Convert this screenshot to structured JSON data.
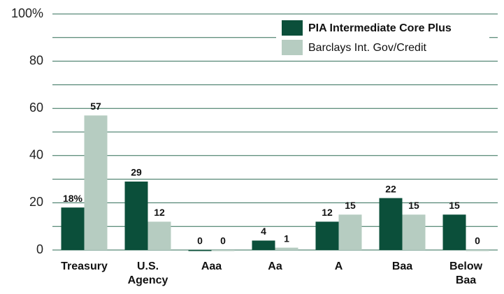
{
  "chart_data": {
    "type": "bar",
    "categories": [
      "Treasury",
      "U.S. Agency",
      "Aaa",
      "Aa",
      "A",
      "Baa",
      "Below Baa"
    ],
    "series": [
      {
        "name": "PIA Intermediate Core Plus",
        "color": "#0b4f3a",
        "values": [
          18,
          29,
          0,
          4,
          12,
          22,
          15
        ],
        "value_labels": [
          "18%",
          "29",
          "0",
          "4",
          "12",
          "22",
          "15"
        ]
      },
      {
        "name": "Barclays Int. Gov/Credit",
        "color": "#b6ccc1",
        "values": [
          57,
          12,
          0,
          1,
          15,
          15,
          0
        ]
      }
    ],
    "ylim": [
      0,
      100
    ],
    "yticks": [
      0,
      20,
      40,
      60,
      80,
      {
        "value": 100,
        "label": "100%"
      }
    ],
    "minor_yticks": [
      10,
      30,
      50,
      70,
      90
    ],
    "grid": true,
    "legend": "top-right"
  }
}
